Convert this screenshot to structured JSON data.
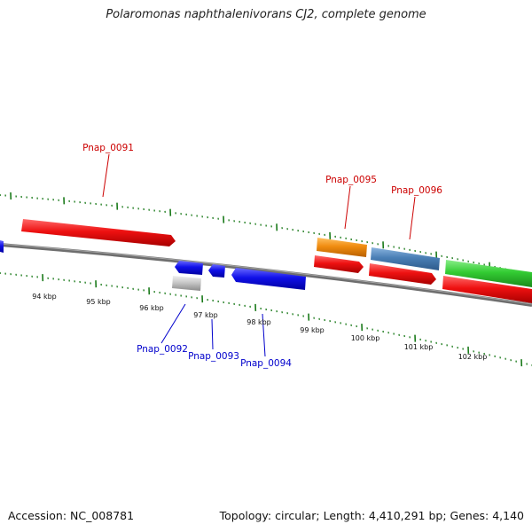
{
  "title": "Polaromonas naphthalenivorans CJ2, complete genome",
  "footer": {
    "accession": "Accession: NC_008781",
    "summary": "Topology: circular; Length: 4,410,291 bp; Genes: 4,140"
  },
  "scale_labels": [
    "94 kbp",
    "95 kbp",
    "96 kbp",
    "97 kbp",
    "98 kbp",
    "99 kbp",
    "100 kbp",
    "101 kbp",
    "102 kbp"
  ],
  "genes": [
    {
      "id": "edge-left",
      "label": "",
      "strand": "reverse",
      "color": "#1010e8"
    },
    {
      "id": "Pnap_0091",
      "label": "Pnap_0091",
      "strand": "forward",
      "color": "#ee1111"
    },
    {
      "id": "Pnap_0092",
      "label": "Pnap_0092",
      "strand": "reverse",
      "color": "#1010e8"
    },
    {
      "id": "Pnap_0092-rna",
      "label": "",
      "strand": "reverse",
      "color": "#c8c8c8"
    },
    {
      "id": "Pnap_0093",
      "label": "Pnap_0093",
      "strand": "reverse",
      "color": "#1010e8"
    },
    {
      "id": "Pnap_0094",
      "label": "Pnap_0094",
      "strand": "reverse",
      "color": "#1010e8"
    },
    {
      "id": "Pnap_0095-cog",
      "label": "",
      "strand": "forward",
      "color": "#f08c10"
    },
    {
      "id": "Pnap_0095",
      "label": "Pnap_0095",
      "strand": "forward",
      "color": "#ee1111"
    },
    {
      "id": "Pnap_0096-cog",
      "label": "",
      "strand": "forward",
      "color": "#4a7fb5"
    },
    {
      "id": "Pnap_0096",
      "label": "Pnap_0096",
      "strand": "forward",
      "color": "#ee1111"
    },
    {
      "id": "edge-right-cog",
      "label": "",
      "strand": "forward",
      "color": "#33cc33"
    },
    {
      "id": "edge-right",
      "label": "",
      "strand": "forward",
      "color": "#ee1111"
    }
  ],
  "colors": {
    "forward_label": "#cc0000",
    "reverse_label": "#0000cc",
    "tick": "#1a7a1a",
    "backbone": "#777777"
  }
}
